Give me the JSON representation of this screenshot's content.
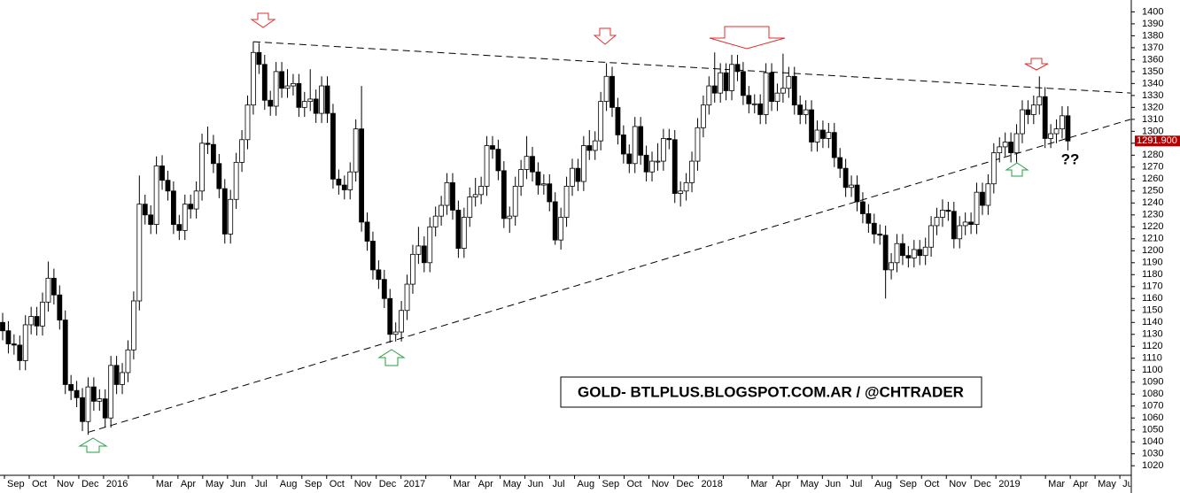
{
  "chart_data": {
    "type": "candlestick",
    "title": "GOLD- BTLPLUS.BLOGSPOT.COM.AR / @CHTRADER",
    "annotation": "??",
    "x_labels": [
      "Sep",
      "Oct",
      "Nov",
      "Dec",
      "2016",
      null,
      "Mar",
      "Apr",
      "May",
      "Jun",
      "Jul",
      "Aug",
      "Sep",
      "Oct",
      "Nov",
      "Dec",
      "2017",
      null,
      "Mar",
      "Apr",
      "May",
      "Jun",
      "Jul",
      "Aug",
      "Sep",
      "Oct",
      "Nov",
      "Dec",
      "2018",
      null,
      "Mar",
      "Apr",
      "May",
      "Jun",
      "Jul",
      "Aug",
      "Sep",
      "Oct",
      "Nov",
      "Dec",
      "2019",
      null,
      "Mar",
      "Apr",
      "May",
      "Jun"
    ],
    "ylim": [
      1012,
      1404
    ],
    "yticks": [
      1020,
      1030,
      1040,
      1050,
      1060,
      1070,
      1080,
      1090,
      1100,
      1110,
      1120,
      1130,
      1140,
      1150,
      1160,
      1170,
      1180,
      1190,
      1200,
      1210,
      1220,
      1230,
      1240,
      1250,
      1260,
      1270,
      1280,
      1290,
      1300,
      1310,
      1320,
      1330,
      1340,
      1350,
      1360,
      1370,
      1380,
      1390,
      1400
    ],
    "up_color": "#ffffff",
    "down_color": "#000000",
    "last_price": {
      "value": 1291.9,
      "label": "1291.900"
    },
    "trendlines": [
      {
        "points": [
          [
            44,
            1375
          ],
          [
            198,
            1332
          ]
        ]
      },
      {
        "points": [
          [
            15,
            1048
          ],
          [
            198,
            1310
          ]
        ]
      }
    ],
    "candles": [
      [
        1140,
        1148,
        1125,
        1133
      ],
      [
        1133,
        1141,
        1114,
        1122
      ],
      [
        1122,
        1130,
        1113,
        1121
      ],
      [
        1121,
        1129,
        1100,
        1108
      ],
      [
        1108,
        1146,
        1100,
        1138
      ],
      [
        1138,
        1153,
        1130,
        1145
      ],
      [
        1145,
        1153,
        1129,
        1137
      ],
      [
        1137,
        1165,
        1129,
        1157
      ],
      [
        1157,
        1191,
        1149,
        1177
      ],
      [
        1177,
        1185,
        1155,
        1163
      ],
      [
        1163,
        1171,
        1134,
        1142
      ],
      [
        1142,
        1150,
        1080,
        1088
      ],
      [
        1088,
        1096,
        1075,
        1083
      ],
      [
        1083,
        1091,
        1069,
        1077
      ],
      [
        1077,
        1085,
        1049,
        1057
      ],
      [
        1057,
        1094,
        1046,
        1086
      ],
      [
        1086,
        1094,
        1066,
        1074
      ],
      [
        1074,
        1084,
        1066,
        1076
      ],
      [
        1076,
        1084,
        1052,
        1060
      ],
      [
        1060,
        1112,
        1052,
        1104
      ],
      [
        1104,
        1112,
        1080,
        1088
      ],
      [
        1088,
        1106,
        1080,
        1098
      ],
      [
        1098,
        1125,
        1090,
        1117
      ],
      [
        1117,
        1166,
        1109,
        1158
      ],
      [
        1158,
        1263,
        1150,
        1239
      ],
      [
        1239,
        1247,
        1222,
        1230
      ],
      [
        1230,
        1238,
        1214,
        1222
      ],
      [
        1222,
        1279,
        1214,
        1271
      ],
      [
        1271,
        1280,
        1251,
        1259
      ],
      [
        1259,
        1267,
        1242,
        1250
      ],
      [
        1250,
        1258,
        1214,
        1222
      ],
      [
        1222,
        1230,
        1209,
        1217
      ],
      [
        1217,
        1247,
        1209,
        1239
      ],
      [
        1239,
        1247,
        1227,
        1235
      ],
      [
        1235,
        1258,
        1227,
        1250
      ],
      [
        1250,
        1298,
        1242,
        1290
      ],
      [
        1290,
        1304,
        1281,
        1289
      ],
      [
        1289,
        1297,
        1265,
        1273
      ],
      [
        1273,
        1281,
        1244,
        1252
      ],
      [
        1252,
        1260,
        1206,
        1214
      ],
      [
        1214,
        1251,
        1206,
        1243
      ],
      [
        1243,
        1282,
        1235,
        1274
      ],
      [
        1274,
        1301,
        1266,
        1293
      ],
      [
        1293,
        1330,
        1285,
        1322
      ],
      [
        1322,
        1375,
        1314,
        1366
      ],
      [
        1366,
        1374,
        1348,
        1356
      ],
      [
        1356,
        1364,
        1318,
        1326
      ],
      [
        1326,
        1334,
        1313,
        1321
      ],
      [
        1321,
        1358,
        1313,
        1350
      ],
      [
        1350,
        1358,
        1328,
        1336
      ],
      [
        1336,
        1352,
        1328,
        1338
      ],
      [
        1338,
        1348,
        1330,
        1340
      ],
      [
        1340,
        1348,
        1312,
        1320
      ],
      [
        1320,
        1333,
        1312,
        1325
      ],
      [
        1325,
        1352,
        1317,
        1327
      ],
      [
        1327,
        1335,
        1307,
        1315
      ],
      [
        1315,
        1346,
        1307,
        1338
      ],
      [
        1338,
        1346,
        1307,
        1315
      ],
      [
        1315,
        1323,
        1252,
        1260
      ],
      [
        1260,
        1268,
        1247,
        1255
      ],
      [
        1255,
        1263,
        1243,
        1251
      ],
      [
        1251,
        1274,
        1243,
        1266
      ],
      [
        1266,
        1310,
        1258,
        1302
      ],
      [
        1302,
        1338,
        1216,
        1224
      ],
      [
        1224,
        1232,
        1200,
        1208
      ],
      [
        1208,
        1216,
        1176,
        1184
      ],
      [
        1184,
        1192,
        1168,
        1176
      ],
      [
        1176,
        1184,
        1152,
        1160
      ],
      [
        1160,
        1168,
        1123,
        1130
      ],
      [
        1130,
        1140,
        1124,
        1132
      ],
      [
        1132,
        1158,
        1124,
        1150
      ],
      [
        1150,
        1180,
        1142,
        1172
      ],
      [
        1172,
        1205,
        1164,
        1197
      ],
      [
        1197,
        1220,
        1189,
        1204
      ],
      [
        1204,
        1212,
        1182,
        1190
      ],
      [
        1190,
        1228,
        1182,
        1220
      ],
      [
        1220,
        1237,
        1212,
        1229
      ],
      [
        1229,
        1246,
        1221,
        1238
      ],
      [
        1238,
        1265,
        1230,
        1257
      ],
      [
        1257,
        1265,
        1226,
        1234
      ],
      [
        1234,
        1242,
        1194,
        1202
      ],
      [
        1202,
        1236,
        1194,
        1228
      ],
      [
        1228,
        1253,
        1220,
        1245
      ],
      [
        1245,
        1261,
        1237,
        1247
      ],
      [
        1247,
        1262,
        1239,
        1254
      ],
      [
        1254,
        1296,
        1246,
        1288
      ],
      [
        1288,
        1296,
        1277,
        1285
      ],
      [
        1285,
        1293,
        1259,
        1267
      ],
      [
        1267,
        1275,
        1219,
        1227
      ],
      [
        1227,
        1237,
        1215,
        1229
      ],
      [
        1229,
        1262,
        1221,
        1254
      ],
      [
        1254,
        1276,
        1246,
        1268
      ],
      [
        1268,
        1296,
        1260,
        1279
      ],
      [
        1279,
        1287,
        1258,
        1266
      ],
      [
        1266,
        1274,
        1247,
        1255
      ],
      [
        1255,
        1264,
        1247,
        1256
      ],
      [
        1256,
        1264,
        1233,
        1241
      ],
      [
        1241,
        1249,
        1205,
        1209
      ],
      [
        1209,
        1236,
        1201,
        1228
      ],
      [
        1228,
        1262,
        1220,
        1254
      ],
      [
        1254,
        1277,
        1246,
        1269
      ],
      [
        1269,
        1277,
        1250,
        1258
      ],
      [
        1258,
        1296,
        1250,
        1288
      ],
      [
        1288,
        1301,
        1276,
        1284
      ],
      [
        1284,
        1300,
        1276,
        1292
      ],
      [
        1292,
        1333,
        1284,
        1325
      ],
      [
        1325,
        1357,
        1317,
        1346
      ],
      [
        1346,
        1354,
        1312,
        1320
      ],
      [
        1320,
        1328,
        1289,
        1297
      ],
      [
        1297,
        1305,
        1273,
        1281
      ],
      [
        1281,
        1289,
        1265,
        1273
      ],
      [
        1273,
        1312,
        1265,
        1304
      ],
      [
        1304,
        1312,
        1272,
        1280
      ],
      [
        1280,
        1288,
        1258,
        1266
      ],
      [
        1266,
        1283,
        1258,
        1275
      ],
      [
        1275,
        1290,
        1267,
        1275
      ],
      [
        1275,
        1302,
        1267,
        1294
      ],
      [
        1294,
        1302,
        1285,
        1293
      ],
      [
        1293,
        1301,
        1240,
        1248
      ],
      [
        1248,
        1258,
        1237,
        1250
      ],
      [
        1250,
        1265,
        1242,
        1257
      ],
      [
        1257,
        1283,
        1249,
        1275
      ],
      [
        1275,
        1311,
        1267,
        1303
      ],
      [
        1303,
        1330,
        1295,
        1322
      ],
      [
        1322,
        1346,
        1314,
        1338
      ],
      [
        1338,
        1366,
        1324,
        1332
      ],
      [
        1332,
        1357,
        1324,
        1349
      ],
      [
        1349,
        1357,
        1326,
        1334
      ],
      [
        1334,
        1364,
        1326,
        1356
      ],
      [
        1356,
        1364,
        1342,
        1350
      ],
      [
        1350,
        1358,
        1322,
        1330
      ],
      [
        1330,
        1338,
        1315,
        1323
      ],
      [
        1323,
        1331,
        1315,
        1323
      ],
      [
        1323,
        1331,
        1306,
        1314
      ],
      [
        1314,
        1357,
        1306,
        1349
      ],
      [
        1349,
        1357,
        1317,
        1325
      ],
      [
        1325,
        1340,
        1317,
        1332
      ],
      [
        1332,
        1365,
        1324,
        1336
      ],
      [
        1336,
        1354,
        1328,
        1346
      ],
      [
        1346,
        1354,
        1314,
        1322
      ],
      [
        1322,
        1330,
        1306,
        1314
      ],
      [
        1314,
        1326,
        1306,
        1318
      ],
      [
        1318,
        1326,
        1283,
        1291
      ],
      [
        1291,
        1309,
        1283,
        1301
      ],
      [
        1301,
        1309,
        1286,
        1294
      ],
      [
        1294,
        1307,
        1286,
        1299
      ],
      [
        1299,
        1307,
        1270,
        1278
      ],
      [
        1278,
        1286,
        1261,
        1269
      ],
      [
        1269,
        1277,
        1245,
        1253
      ],
      [
        1253,
        1263,
        1245,
        1255
      ],
      [
        1255,
        1263,
        1233,
        1241
      ],
      [
        1241,
        1249,
        1223,
        1231
      ],
      [
        1231,
        1239,
        1215,
        1223
      ],
      [
        1223,
        1231,
        1206,
        1214
      ],
      [
        1214,
        1222,
        1205,
        1213
      ],
      [
        1213,
        1221,
        1160,
        1184
      ],
      [
        1184,
        1198,
        1176,
        1190
      ],
      [
        1190,
        1214,
        1182,
        1206
      ],
      [
        1206,
        1214,
        1188,
        1196
      ],
      [
        1196,
        1204,
        1186,
        1194
      ],
      [
        1194,
        1209,
        1186,
        1201
      ],
      [
        1201,
        1209,
        1188,
        1196
      ],
      [
        1196,
        1211,
        1188,
        1203
      ],
      [
        1203,
        1229,
        1195,
        1221
      ],
      [
        1221,
        1236,
        1213,
        1228
      ],
      [
        1228,
        1243,
        1220,
        1234
      ],
      [
        1234,
        1241,
        1225,
        1233
      ],
      [
        1233,
        1241,
        1202,
        1210
      ],
      [
        1210,
        1229,
        1202,
        1221
      ],
      [
        1221,
        1232,
        1213,
        1224
      ],
      [
        1224,
        1232,
        1214,
        1222
      ],
      [
        1222,
        1257,
        1214,
        1249
      ],
      [
        1249,
        1257,
        1230,
        1238
      ],
      [
        1238,
        1264,
        1230,
        1256
      ],
      [
        1256,
        1290,
        1248,
        1282
      ],
      [
        1282,
        1295,
        1274,
        1287
      ],
      [
        1287,
        1299,
        1279,
        1291
      ],
      [
        1291,
        1299,
        1274,
        1282
      ],
      [
        1282,
        1306,
        1274,
        1298
      ],
      [
        1298,
        1326,
        1290,
        1318
      ],
      [
        1318,
        1326,
        1306,
        1314
      ],
      [
        1314,
        1330,
        1306,
        1322
      ],
      [
        1322,
        1346,
        1314,
        1329
      ],
      [
        1329,
        1337,
        1286,
        1294
      ],
      [
        1294,
        1306,
        1286,
        1298
      ],
      [
        1298,
        1310,
        1290,
        1302
      ],
      [
        1302,
        1321,
        1294,
        1313
      ],
      [
        1313,
        1321,
        1284,
        1291.9
      ]
    ]
  }
}
